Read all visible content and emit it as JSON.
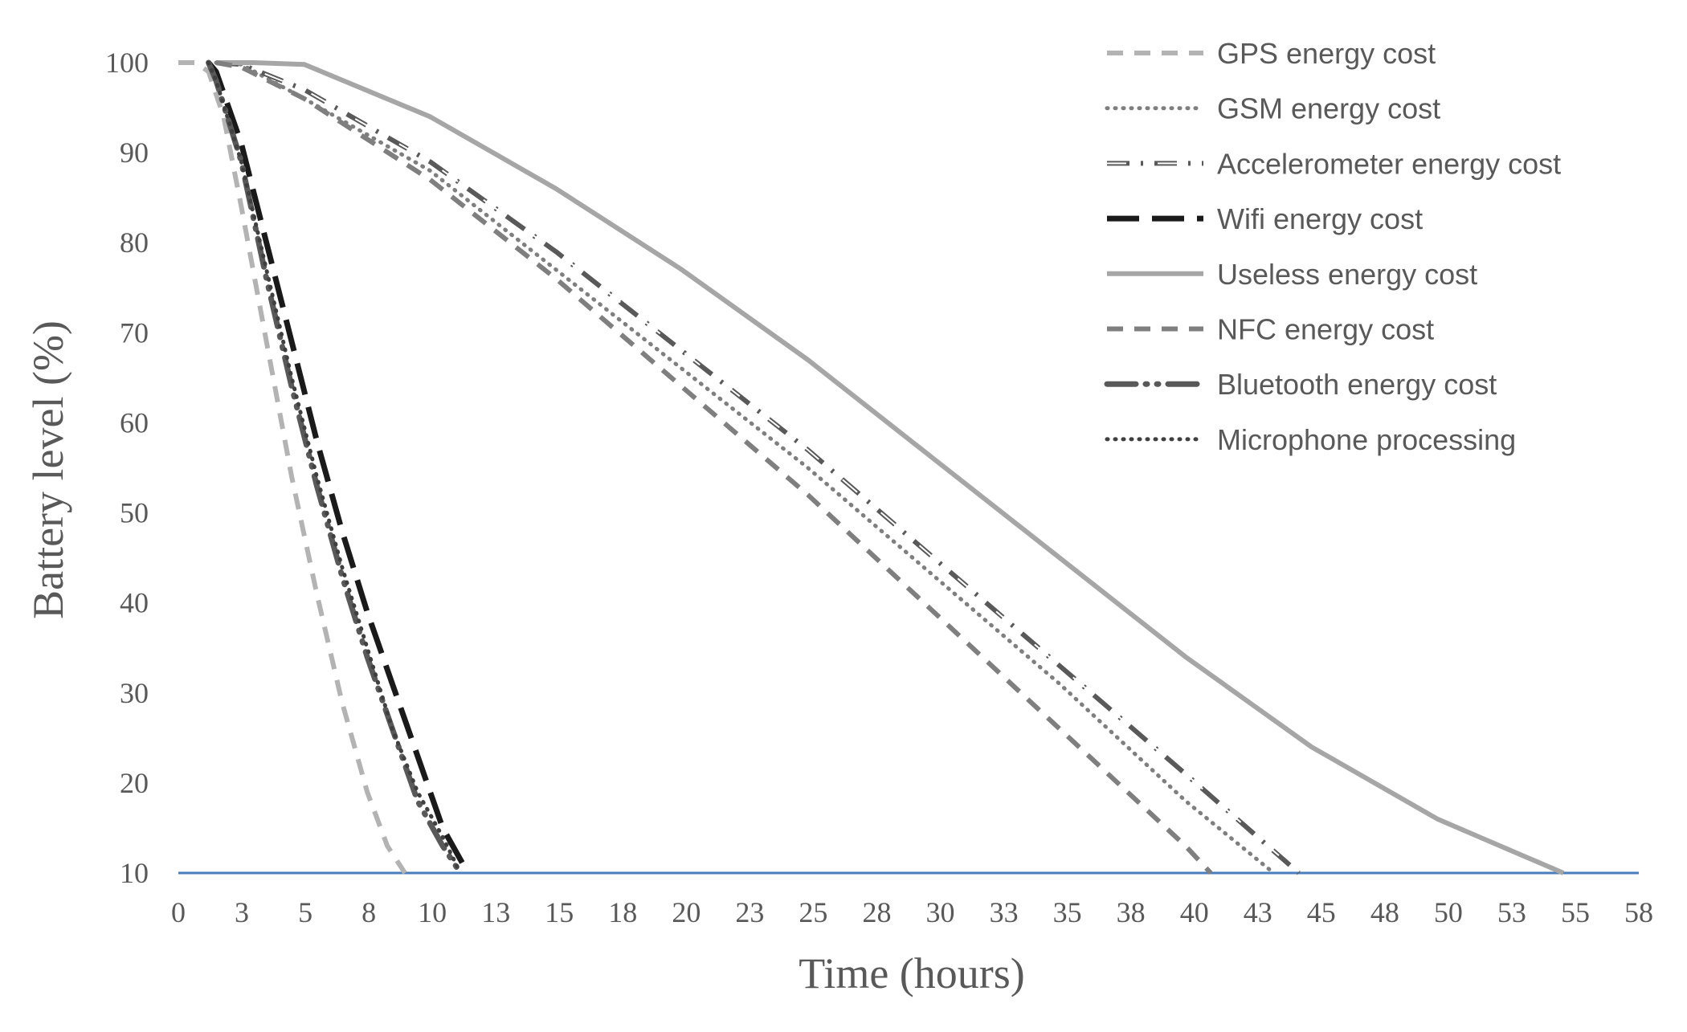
{
  "chart_data": {
    "type": "line",
    "title": "",
    "xlabel": "Time (hours)",
    "ylabel": "Battery level (%)",
    "xlim": [
      0,
      58
    ],
    "ylim": [
      10,
      100
    ],
    "x_tick_labels": [
      "0",
      "3",
      "5",
      "8",
      "10",
      "13",
      "15",
      "18",
      "20",
      "23",
      "25",
      "28",
      "30",
      "33",
      "35",
      "38",
      "40",
      "43",
      "45",
      "48",
      "50",
      "53",
      "55",
      "58"
    ],
    "y_ticks": [
      10,
      20,
      30,
      40,
      50,
      60,
      70,
      80,
      90,
      100
    ],
    "grid": false,
    "legend_position": "top-right",
    "threshold_line": {
      "y": 10,
      "color": "#4a7ebb"
    },
    "series": [
      {
        "name": "GPS energy cost",
        "color": "#b3b3b3",
        "style": "dash",
        "x": [
          0,
          0.7,
          1.2,
          1.8,
          2.5,
          3.5,
          4.5,
          5.5,
          6.5,
          7.5,
          8.3,
          9.0
        ],
        "y": [
          100,
          100,
          99,
          94,
          84,
          69,
          54,
          41,
          29,
          19,
          13,
          10
        ]
      },
      {
        "name": "GSM energy cost",
        "color": "#7f7f7f",
        "style": "dot",
        "x": [
          1.5,
          2.5,
          5,
          10,
          15,
          20,
          25,
          30,
          35,
          40,
          43.5
        ],
        "y": [
          100,
          99.8,
          96,
          88,
          77,
          66,
          55,
          43,
          31,
          18,
          10
        ]
      },
      {
        "name": "Accelerometer energy cost",
        "color": "#595959",
        "style": "dashdot-double",
        "x": [
          1.5,
          2.5,
          5,
          10,
          15,
          20,
          25,
          30,
          35,
          40,
          44.5
        ],
        "y": [
          100,
          99.8,
          97,
          89,
          79,
          68,
          57,
          45,
          33,
          21,
          10
        ]
      },
      {
        "name": "Wifi energy cost",
        "color": "#1a1a1a",
        "style": "longdash",
        "x": [
          1.2,
          1.5,
          2.5,
          3.5,
          4.5,
          5.5,
          6.5,
          7.5,
          8.5,
          9.5,
          10.5,
          11.5
        ],
        "y": [
          100,
          99,
          91,
          80,
          69,
          58,
          48,
          39,
          31,
          23,
          15,
          10
        ]
      },
      {
        "name": "Useless energy cost",
        "color": "#a6a6a6",
        "style": "solid",
        "x": [
          1.5,
          3,
          5,
          10,
          15,
          20,
          25,
          30,
          35,
          40,
          45,
          50,
          55
        ],
        "y": [
          100,
          100,
          99.8,
          94,
          86,
          77,
          67,
          56,
          45,
          34,
          24,
          16,
          10
        ]
      },
      {
        "name": "NFC energy cost",
        "color": "#7f7f7f",
        "style": "dash",
        "x": [
          1.5,
          2.5,
          5,
          10,
          15,
          20,
          25,
          30,
          35,
          40,
          41
        ],
        "y": [
          100,
          99.5,
          96,
          87,
          76,
          64,
          52,
          39,
          26,
          13,
          10
        ]
      },
      {
        "name": "Bluetooth energy cost",
        "color": "#595959",
        "style": "longdashdot",
        "x": [
          1.2,
          1.5,
          2.5,
          3.5,
          4.5,
          5.5,
          6.5,
          7.5,
          8.5,
          9.5,
          10.5,
          11.2
        ],
        "y": [
          100,
          98,
          89,
          76,
          64,
          53,
          43,
          34,
          26,
          18,
          13,
          10
        ]
      },
      {
        "name": "Microphone processing",
        "color": "#404040",
        "style": "dot",
        "x": [
          1.2,
          1.5,
          2.5,
          3.5,
          4.5,
          5.5,
          6.5,
          7.5,
          8.5,
          9.5,
          10.5,
          11.2
        ],
        "y": [
          100,
          98,
          89,
          77,
          65,
          54,
          44,
          35,
          26,
          19,
          14,
          10
        ]
      }
    ]
  }
}
